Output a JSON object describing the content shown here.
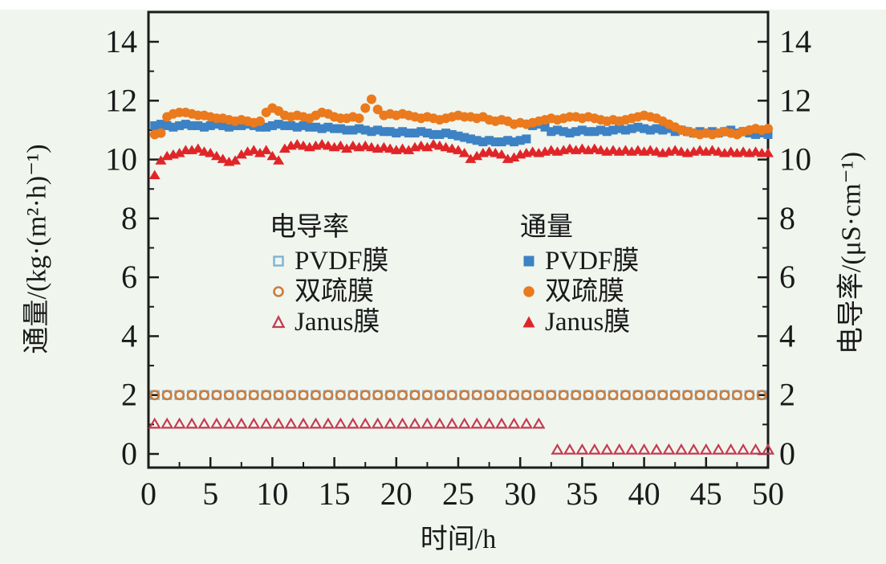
{
  "figure": {
    "background": "#f0f5ee",
    "top_strip_color": "#ffffff",
    "frame_color": "#1c1c1c",
    "text_color": "#1a1a1a"
  },
  "colors": {
    "flux_pvdf": "#3d82c4",
    "flux_shuangshu": "#ea7a1d",
    "flux_janus": "#e02528",
    "cond_pvdf": "#7fb2d2",
    "cond_shuangshu": "#c97c40",
    "cond_janus": "#c43a50"
  },
  "chart_data": {
    "type": "scatter",
    "title": "",
    "xlabel": "时间/h",
    "ylabel_left": "通量/(kg·(m²·h)⁻¹)",
    "ylabel_right": "电导率/(μS·cm⁻¹)",
    "x_range": [
      0,
      50
    ],
    "y_range_left": [
      0,
      15
    ],
    "y_range_right": [
      0,
      15
    ],
    "x_major_ticks": [
      0,
      5,
      10,
      15,
      20,
      25,
      30,
      35,
      40,
      45,
      50
    ],
    "x_minor_ticks": [
      2.5,
      7.5,
      12.5,
      17.5,
      22.5,
      27.5,
      32.5,
      37.5,
      42.5,
      47.5
    ],
    "y_major_ticks": [
      0,
      2,
      4,
      6,
      8,
      10,
      12,
      14
    ],
    "y_minor_ticks": [
      1,
      3,
      5,
      7,
      9,
      11,
      13
    ],
    "grid": false,
    "legend": {
      "conductivity_title": "电导率",
      "flux_title": "通量",
      "series_labels": [
        "PVDF膜",
        "双疏膜",
        "Janus膜"
      ],
      "position": "center"
    },
    "series": [
      {
        "name": "PVDF膜 电导率",
        "group": "电导率",
        "axis": "right",
        "marker": "square",
        "filled": false,
        "color": "#7fb2d2",
        "visibility": "mostly hidden behind 双疏膜 电导率 circles at y=2",
        "x_start": 0.5,
        "x_step": 1,
        "values": [
          2,
          2,
          2,
          2,
          2,
          2,
          2,
          2,
          2,
          2,
          2,
          2,
          2,
          2,
          2,
          2,
          2,
          2,
          2,
          2,
          2,
          2,
          2,
          2,
          2,
          2,
          2,
          2,
          2,
          2,
          2,
          2,
          2,
          2,
          2,
          2,
          2,
          2,
          2,
          2,
          2,
          2,
          2,
          2,
          2,
          2,
          2,
          2,
          2,
          2
        ]
      },
      {
        "name": "双疏膜 电导率",
        "group": "电导率",
        "axis": "right",
        "marker": "circle",
        "filled": false,
        "color": "#c97c40",
        "x_start": 0.5,
        "x_step": 1,
        "values": [
          2,
          2,
          2,
          2,
          2,
          2,
          2,
          2,
          2,
          2,
          2,
          2,
          2,
          2,
          2,
          2,
          2,
          2,
          2,
          2,
          2,
          2,
          2,
          2,
          2,
          2,
          2,
          2,
          2,
          2,
          2,
          2,
          2,
          2,
          2,
          2,
          2,
          2,
          2,
          2,
          2,
          2,
          2,
          2,
          2,
          2,
          2,
          2,
          2,
          2
        ]
      },
      {
        "name": "Janus膜 电导率",
        "group": "电导率",
        "axis": "right",
        "marker": "triangle",
        "filled": false,
        "color": "#c43a50",
        "x": [
          0.5,
          1.5,
          2.5,
          3.5,
          4.5,
          5.5,
          6.5,
          7.5,
          8.5,
          9.5,
          10.5,
          11.5,
          12.5,
          13.5,
          14.5,
          15.5,
          16.5,
          17.5,
          18.5,
          19.5,
          20.5,
          21.5,
          22.5,
          23.5,
          24.5,
          25.5,
          26.5,
          27.5,
          28.5,
          29.5,
          30.5,
          31.5,
          33,
          34,
          35,
          36,
          37,
          38,
          39,
          40,
          41,
          42,
          43,
          44,
          45,
          46,
          47,
          48,
          49,
          50
        ],
        "values": [
          1,
          1,
          1,
          1,
          1,
          1,
          1,
          1,
          1,
          1,
          1,
          1,
          1,
          1,
          1,
          1,
          1,
          1,
          1,
          1,
          1,
          1,
          1,
          1,
          1,
          1,
          1,
          1,
          1,
          1,
          1,
          1,
          0.12,
          0.12,
          0.12,
          0.12,
          0.12,
          0.12,
          0.12,
          0.12,
          0.12,
          0.12,
          0.12,
          0.12,
          0.12,
          0.12,
          0.12,
          0.12,
          0.12,
          0.12
        ]
      },
      {
        "name": "PVDF膜 通量",
        "group": "通量",
        "axis": "left",
        "marker": "square",
        "filled": true,
        "color": "#3d82c4",
        "x_start": 0.5,
        "x_step": 0.5,
        "values": [
          11.15,
          11.2,
          11.15,
          11.1,
          11.15,
          11.2,
          11.15,
          11.15,
          11.1,
          11.15,
          11.2,
          11.15,
          11.1,
          11.15,
          11.15,
          11.2,
          11.15,
          11.1,
          11.1,
          11.15,
          11.2,
          11.15,
          11.15,
          11.1,
          11.15,
          11.1,
          11.1,
          11.05,
          11.1,
          11.05,
          11.05,
          11.0,
          11.0,
          11.05,
          11.0,
          10.95,
          11.0,
          10.95,
          10.95,
          10.9,
          10.95,
          10.9,
          10.9,
          10.95,
          10.9,
          10.85,
          10.85,
          10.9,
          10.85,
          10.8,
          10.75,
          10.7,
          10.65,
          10.6,
          10.65,
          10.6,
          10.6,
          10.65,
          10.6,
          10.65,
          10.7,
          11.15,
          11.2,
          11.1,
          10.95,
          11.0,
          10.95,
          10.9,
          10.95,
          11.0,
          10.95,
          10.95,
          11.0,
          10.95,
          11.0,
          11.05,
          11.0,
          11.05,
          11.1,
          11.05,
          11.0,
          11.05,
          11.0,
          11.05,
          10.95,
          11.0,
          10.95,
          10.9,
          10.95,
          10.9,
          10.95,
          10.9,
          10.95,
          11.0,
          10.9,
          10.95,
          10.9,
          10.85,
          10.9,
          10.85
        ]
      },
      {
        "name": "双疏膜 通量",
        "group": "通量",
        "axis": "left",
        "marker": "circle",
        "filled": true,
        "color": "#ea7a1d",
        "x_start": 0.5,
        "x_step": 0.5,
        "values": [
          10.85,
          10.9,
          11.45,
          11.55,
          11.6,
          11.6,
          11.55,
          11.5,
          11.5,
          11.45,
          11.4,
          11.4,
          11.35,
          11.3,
          11.35,
          11.3,
          11.25,
          11.3,
          11.6,
          11.75,
          11.65,
          11.5,
          11.45,
          11.5,
          11.45,
          11.4,
          11.5,
          11.6,
          11.55,
          11.45,
          11.4,
          11.4,
          11.45,
          11.4,
          11.75,
          12.05,
          11.7,
          11.5,
          11.55,
          11.5,
          11.55,
          11.5,
          11.45,
          11.4,
          11.45,
          11.4,
          11.35,
          11.4,
          11.45,
          11.5,
          11.45,
          11.45,
          11.4,
          11.45,
          11.35,
          11.3,
          11.35,
          11.3,
          11.2,
          11.25,
          11.2,
          11.25,
          11.3,
          11.35,
          11.4,
          11.35,
          11.4,
          11.45,
          11.45,
          11.4,
          11.45,
          11.4,
          11.35,
          11.3,
          11.35,
          11.3,
          11.35,
          11.4,
          11.45,
          11.5,
          11.45,
          11.4,
          11.3,
          11.2,
          11.1,
          11.0,
          10.95,
          10.9,
          10.85,
          10.9,
          10.85,
          10.9,
          10.95,
          10.9,
          10.85,
          10.95,
          11.0,
          11.05,
          11.0,
          11.05
        ]
      },
      {
        "name": "Janus膜 通量",
        "group": "通量",
        "axis": "left",
        "marker": "triangle",
        "filled": true,
        "color": "#e02528",
        "x_start": 0.5,
        "x_step": 0.5,
        "values": [
          9.45,
          9.95,
          10.1,
          10.15,
          10.2,
          10.3,
          10.3,
          10.35,
          10.25,
          10.2,
          10.1,
          10.0,
          9.9,
          9.95,
          10.15,
          10.25,
          10.3,
          10.2,
          10.3,
          10.1,
          9.95,
          10.35,
          10.45,
          10.5,
          10.45,
          10.4,
          10.45,
          10.5,
          10.45,
          10.4,
          10.45,
          10.35,
          10.45,
          10.4,
          10.45,
          10.4,
          10.35,
          10.4,
          10.35,
          10.3,
          10.35,
          10.3,
          10.4,
          10.45,
          10.4,
          10.5,
          10.45,
          10.4,
          10.35,
          10.3,
          10.2,
          10.0,
          10.1,
          10.2,
          10.25,
          10.2,
          10.15,
          10.0,
          10.05,
          10.15,
          10.2,
          10.25,
          10.2,
          10.25,
          10.3,
          10.25,
          10.3,
          10.35,
          10.3,
          10.35,
          10.3,
          10.35,
          10.3,
          10.25,
          10.3,
          10.25,
          10.3,
          10.25,
          10.3,
          10.25,
          10.3,
          10.25,
          10.2,
          10.25,
          10.3,
          10.25,
          10.2,
          10.25,
          10.3,
          10.25,
          10.3,
          10.25,
          10.2,
          10.25,
          10.2,
          10.25,
          10.2,
          10.25,
          10.2,
          10.2
        ]
      }
    ]
  }
}
